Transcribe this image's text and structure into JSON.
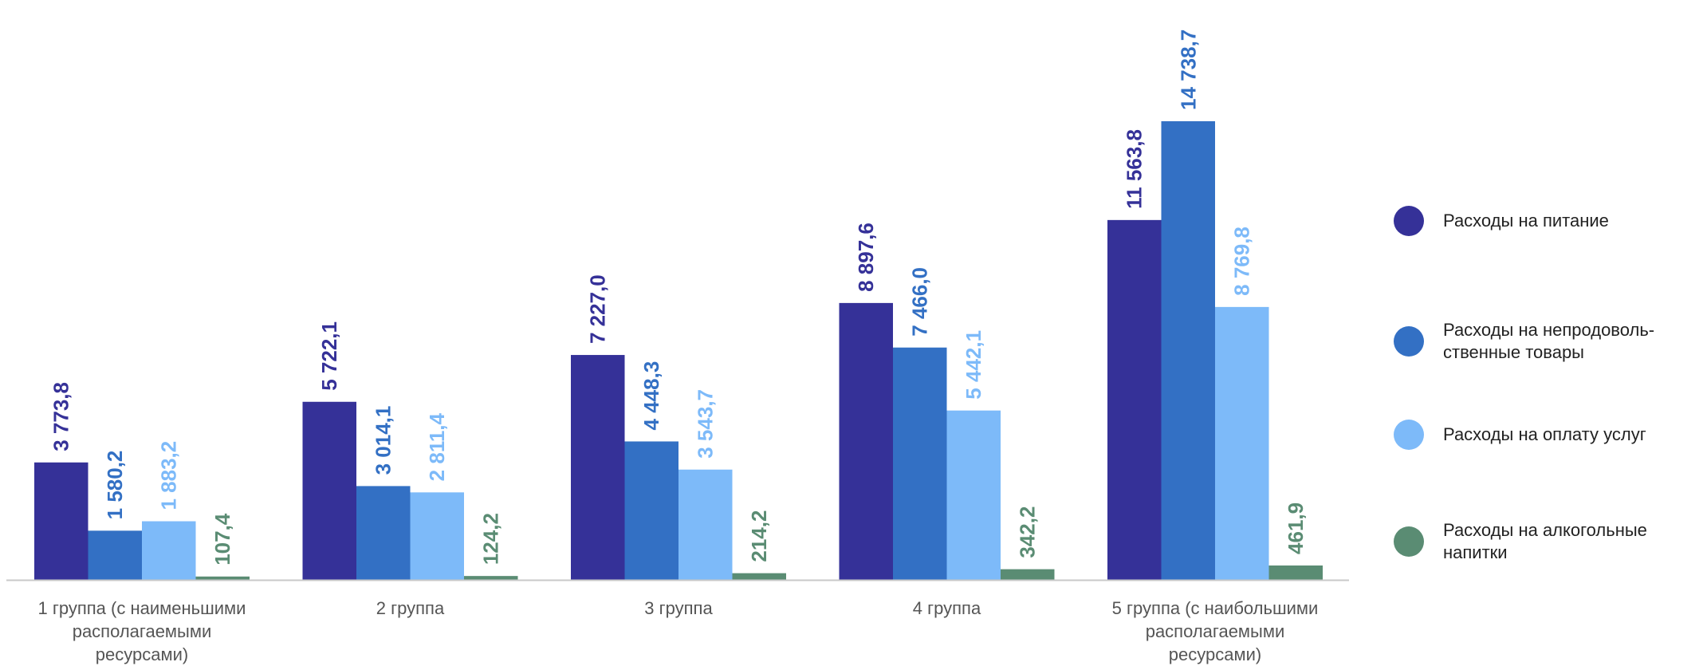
{
  "chart_data": {
    "type": "bar",
    "title": "",
    "xlabel": "",
    "ylabel": "",
    "ylim": [
      0,
      16000
    ],
    "grid": false,
    "legend_position": "right",
    "categories": [
      "1 группа (с наименьшими располагаемыми ресурсами)",
      "2 группа",
      "3 группа",
      "4 группа",
      "5 группа (с наибольшими располагаемыми ресурсами)"
    ],
    "category_lines": [
      [
        "1 группа (с наименьшими",
        "располагаемыми",
        "ресурсами)"
      ],
      [
        "2 группа"
      ],
      [
        "3 группа"
      ],
      [
        "4 группа"
      ],
      [
        "5 группа (с наибольшими",
        "располагаемыми",
        "ресурсами)"
      ]
    ],
    "series": [
      {
        "name": "Расходы на питание",
        "color": "#353198",
        "values": [
          3773.8,
          5722.1,
          7227.0,
          8897.6,
          11563.8
        ],
        "labels": [
          "3 773,8",
          "5 722,1",
          "7 227,0",
          "8 897,6",
          "11 563,8"
        ]
      },
      {
        "name": "Расходы на непродовольственные товары",
        "color": "#3370C4",
        "values": [
          1580.2,
          3014.1,
          4448.3,
          7466.0,
          14738.7
        ],
        "labels": [
          "1 580,2",
          "3 014,1",
          "4 448,3",
          "7 466,0",
          "14 738,7"
        ]
      },
      {
        "name": "Расходы на оплату услуг",
        "color": "#7DBAF9",
        "values": [
          1883.2,
          2811.4,
          3543.7,
          5442.1,
          8769.8
        ],
        "labels": [
          "1 883,2",
          "2 811,4",
          "3 543,7",
          "5 442,1",
          "8 769,8"
        ]
      },
      {
        "name": "Расходы на алкогольные напитки",
        "color": "#5A8C73",
        "values": [
          107.4,
          124.2,
          214.2,
          342.2,
          461.9
        ],
        "labels": [
          "107,4",
          "124,2",
          "214,2",
          "342,2",
          "461,9"
        ]
      }
    ]
  },
  "legend": {
    "items": [
      {
        "lines": [
          "Расходы на питание"
        ],
        "color": "#353198"
      },
      {
        "lines": [
          "Расходы на непродоволь-",
          "ственные товары"
        ],
        "color": "#3370C4"
      },
      {
        "lines": [
          "Расходы на оплату услуг"
        ],
        "color": "#7DBAF9"
      },
      {
        "lines": [
          "Расходы на алкогольные",
          "напитки"
        ],
        "color": "#5A8C73"
      }
    ]
  }
}
